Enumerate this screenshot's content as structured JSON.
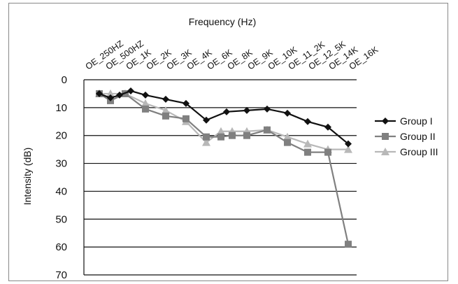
{
  "chart_data": {
    "type": "line",
    "title": "Frequency (Hz)",
    "xlabel": "",
    "ylabel": "Intensity (dB)",
    "categories": [
      "OE_250HZ",
      "OE_500HZ",
      "OE_1K",
      "OE_2K",
      "OE_3K",
      "OE_4K",
      "OE_6K",
      "OE_8K",
      "OE_9K",
      "OE_10K",
      "OE_11_2K",
      "OE_12_5K",
      "OE_14K",
      "OE_16K"
    ],
    "x_axis_position": "top",
    "ylim": [
      0,
      70
    ],
    "y_inverted": true,
    "yticks": [
      0,
      10,
      20,
      30,
      40,
      50,
      60,
      70
    ],
    "grid": true,
    "legend_position": "right",
    "series": [
      {
        "name": "Group I",
        "color": "#111111",
        "marker": "diamond",
        "points": [
          {
            "x": "OE_250HZ",
            "y": 5
          },
          {
            "x": "OE_250HZ",
            "y": 6.5
          },
          {
            "x": "OE_500HZ",
            "y": 5.5
          },
          {
            "x": "OE_500HZ",
            "y": 4
          },
          {
            "x": "OE_1K",
            "y": 5.5
          },
          {
            "x": "OE_2K",
            "y": 7
          },
          {
            "x": "OE_3K",
            "y": 8.5
          },
          {
            "x": "OE_4K",
            "y": 14.5
          },
          {
            "x": "OE_6K",
            "y": 11.5
          },
          {
            "x": "OE_8K",
            "y": 11
          },
          {
            "x": "OE_9K",
            "y": 10.5
          },
          {
            "x": "OE_10K",
            "y": 12
          },
          {
            "x": "OE_11_2K",
            "y": 15
          },
          {
            "x": "OE_12_5K",
            "y": 17
          },
          {
            "x": "OE_14K",
            "y": 23
          }
        ]
      },
      {
        "name": "Group II",
        "color": "#808080",
        "marker": "square",
        "points": [
          {
            "x": "OE_250HZ",
            "y": 5
          },
          {
            "x": "OE_250HZ",
            "y": 7.5
          },
          {
            "x": "OE_500HZ",
            "y": 5
          },
          {
            "x": "OE_1K",
            "y": 10.5
          },
          {
            "x": "OE_2K",
            "y": 13
          },
          {
            "x": "OE_3K",
            "y": 14
          },
          {
            "x": "OE_4K",
            "y": 20.5
          },
          {
            "x": "OE_6K",
            "y": 20.5
          },
          {
            "x": "OE_6K",
            "y": 20
          },
          {
            "x": "OE_8K",
            "y": 20
          },
          {
            "x": "OE_9K",
            "y": 18
          },
          {
            "x": "OE_10K",
            "y": 22.5
          },
          {
            "x": "OE_11_2K",
            "y": 26
          },
          {
            "x": "OE_12_5K",
            "y": 26
          },
          {
            "x": "OE_14K",
            "y": 59
          }
        ]
      },
      {
        "name": "Group III",
        "color": "#b8b8b8",
        "marker": "triangle",
        "points": [
          {
            "x": "OE_250HZ",
            "y": 5
          },
          {
            "x": "OE_250HZ",
            "y": 5
          },
          {
            "x": "OE_500HZ",
            "y": 5
          },
          {
            "x": "OE_1K",
            "y": 8.5
          },
          {
            "x": "OE_2K",
            "y": 11
          },
          {
            "x": "OE_3K",
            "y": 15
          },
          {
            "x": "OE_4K",
            "y": 22.5
          },
          {
            "x": "OE_6K",
            "y": 18.5
          },
          {
            "x": "OE_6K",
            "y": 18.5
          },
          {
            "x": "OE_8K",
            "y": 18.5
          },
          {
            "x": "OE_9K",
            "y": 18
          },
          {
            "x": "OE_10K",
            "y": 20.5
          },
          {
            "x": "OE_11_2K",
            "y": 23
          },
          {
            "x": "OE_12_5K",
            "y": 25
          },
          {
            "x": "OE_14K",
            "y": 25
          }
        ]
      }
    ]
  }
}
